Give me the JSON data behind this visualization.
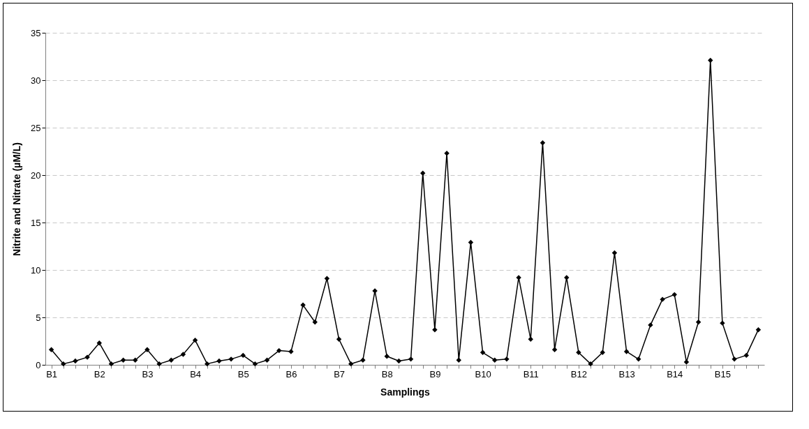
{
  "chart_data": {
    "type": "line",
    "xlabel": "Samplings",
    "ylabel": "Nitrite and Nitrate (µM/L)",
    "categories": [
      "B1",
      null,
      null,
      null,
      "B2",
      null,
      null,
      null,
      "B3",
      null,
      null,
      null,
      "B4",
      null,
      null,
      null,
      "B5",
      null,
      null,
      null,
      "B6",
      null,
      null,
      null,
      "B7",
      null,
      null,
      null,
      "B8",
      null,
      null,
      null,
      "B9",
      null,
      null,
      null,
      "B10",
      null,
      null,
      null,
      "B11",
      null,
      null,
      null,
      "B12",
      null,
      null,
      null,
      "B13",
      null,
      null,
      null,
      "B14",
      null,
      null,
      null,
      "B15",
      null,
      null,
      null
    ],
    "series": [
      {
        "color": "#000000",
        "values": [
          1.6,
          0.1,
          0.4,
          0.8,
          2.3,
          0.1,
          0.5,
          0.5,
          1.6,
          0.1,
          0.5,
          1.1,
          2.6,
          0.1,
          0.4,
          0.6,
          1.0,
          0.1,
          0.5,
          1.5,
          1.4,
          6.3,
          4.5,
          9.1,
          2.7,
          0.1,
          0.5,
          7.8,
          0.9,
          0.4,
          0.6,
          20.2,
          3.7,
          22.3,
          0.5,
          12.9,
          1.3,
          0.5,
          0.6,
          9.2,
          2.7,
          23.4,
          1.6,
          9.2,
          1.3,
          0.1,
          1.3,
          11.8,
          1.4,
          0.6,
          4.2,
          6.9,
          7.4,
          0.3,
          4.5,
          32.1,
          4.4,
          0.6,
          1.0,
          3.7
        ]
      }
    ],
    "ylim": [
      0,
      35
    ],
    "yticks": [
      0,
      5,
      10,
      15,
      20,
      25,
      30,
      35
    ],
    "grid": "y",
    "marker": "diamond",
    "line_style": "solid"
  }
}
